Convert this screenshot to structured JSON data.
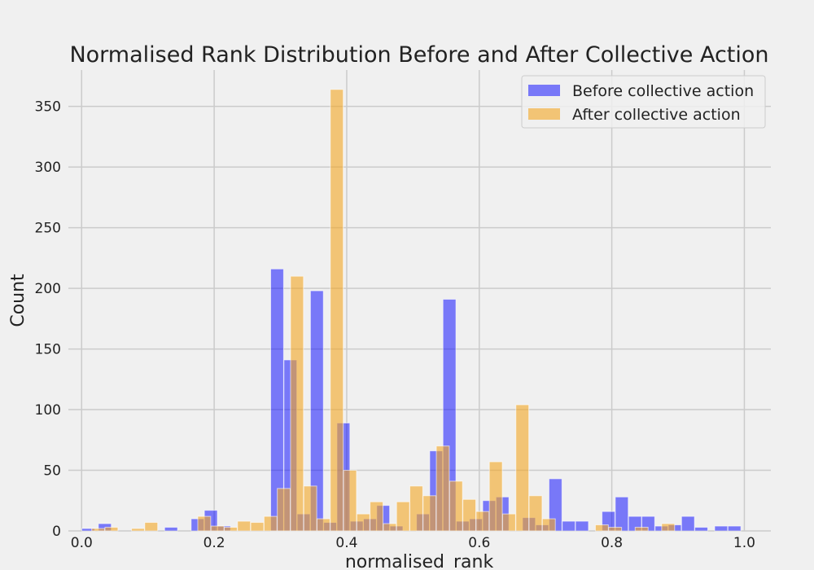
{
  "chart_data": {
    "type": "bar",
    "title": "Normalised Rank Distribution Before and After Collective Action",
    "xlabel": "normalised_rank",
    "ylabel": "Count",
    "xlim": [
      -0.02,
      1.04
    ],
    "ylim": [
      0,
      380
    ],
    "xticks": [
      0.0,
      0.2,
      0.4,
      0.6,
      0.8,
      1.0
    ],
    "xtick_labels": [
      "0.0",
      "0.2",
      "0.4",
      "0.6",
      "0.8",
      "1.0"
    ],
    "yticks": [
      0,
      50,
      100,
      150,
      200,
      250,
      300,
      350
    ],
    "ytick_labels": [
      "0",
      "50",
      "100",
      "150",
      "200",
      "250",
      "300",
      "350"
    ],
    "grid": true,
    "legend_position": "top-right",
    "bin_width": 0.0195,
    "series": [
      {
        "name": "Before collective action",
        "color": "#0000ff",
        "opacity": 0.5,
        "bins": [
          {
            "x": 0.01,
            "count": 2
          },
          {
            "x": 0.035,
            "count": 6
          },
          {
            "x": 0.135,
            "count": 3
          },
          {
            "x": 0.175,
            "count": 10
          },
          {
            "x": 0.195,
            "count": 17
          },
          {
            "x": 0.215,
            "count": 4
          },
          {
            "x": 0.295,
            "count": 216
          },
          {
            "x": 0.315,
            "count": 141
          },
          {
            "x": 0.335,
            "count": 14
          },
          {
            "x": 0.355,
            "count": 198
          },
          {
            "x": 0.375,
            "count": 7
          },
          {
            "x": 0.395,
            "count": 89
          },
          {
            "x": 0.415,
            "count": 8
          },
          {
            "x": 0.435,
            "count": 10
          },
          {
            "x": 0.455,
            "count": 21
          },
          {
            "x": 0.475,
            "count": 4
          },
          {
            "x": 0.515,
            "count": 14
          },
          {
            "x": 0.535,
            "count": 66
          },
          {
            "x": 0.555,
            "count": 191
          },
          {
            "x": 0.575,
            "count": 8
          },
          {
            "x": 0.595,
            "count": 10
          },
          {
            "x": 0.615,
            "count": 25
          },
          {
            "x": 0.635,
            "count": 28
          },
          {
            "x": 0.675,
            "count": 11
          },
          {
            "x": 0.695,
            "count": 5
          },
          {
            "x": 0.715,
            "count": 43
          },
          {
            "x": 0.735,
            "count": 8
          },
          {
            "x": 0.755,
            "count": 8
          },
          {
            "x": 0.795,
            "count": 16
          },
          {
            "x": 0.815,
            "count": 28
          },
          {
            "x": 0.835,
            "count": 12
          },
          {
            "x": 0.855,
            "count": 12
          },
          {
            "x": 0.875,
            "count": 4
          },
          {
            "x": 0.895,
            "count": 5
          },
          {
            "x": 0.915,
            "count": 12
          },
          {
            "x": 0.935,
            "count": 3
          },
          {
            "x": 0.965,
            "count": 4
          },
          {
            "x": 0.985,
            "count": 4
          }
        ]
      },
      {
        "name": "After collective action",
        "color": "#f4a623",
        "opacity": 0.6,
        "bins": [
          {
            "x": 0.025,
            "count": 2
          },
          {
            "x": 0.045,
            "count": 3
          },
          {
            "x": 0.085,
            "count": 2
          },
          {
            "x": 0.105,
            "count": 7
          },
          {
            "x": 0.185,
            "count": 12
          },
          {
            "x": 0.205,
            "count": 4
          },
          {
            "x": 0.225,
            "count": 3
          },
          {
            "x": 0.245,
            "count": 8
          },
          {
            "x": 0.265,
            "count": 7
          },
          {
            "x": 0.285,
            "count": 12
          },
          {
            "x": 0.305,
            "count": 35
          },
          {
            "x": 0.325,
            "count": 210
          },
          {
            "x": 0.345,
            "count": 37
          },
          {
            "x": 0.365,
            "count": 10
          },
          {
            "x": 0.385,
            "count": 364
          },
          {
            "x": 0.405,
            "count": 50
          },
          {
            "x": 0.425,
            "count": 14
          },
          {
            "x": 0.445,
            "count": 24
          },
          {
            "x": 0.465,
            "count": 6
          },
          {
            "x": 0.485,
            "count": 24
          },
          {
            "x": 0.505,
            "count": 37
          },
          {
            "x": 0.525,
            "count": 29
          },
          {
            "x": 0.545,
            "count": 70
          },
          {
            "x": 0.565,
            "count": 41
          },
          {
            "x": 0.585,
            "count": 26
          },
          {
            "x": 0.605,
            "count": 16
          },
          {
            "x": 0.625,
            "count": 57
          },
          {
            "x": 0.645,
            "count": 14
          },
          {
            "x": 0.665,
            "count": 104
          },
          {
            "x": 0.685,
            "count": 29
          },
          {
            "x": 0.705,
            "count": 10
          },
          {
            "x": 0.785,
            "count": 5
          },
          {
            "x": 0.805,
            "count": 3
          },
          {
            "x": 0.845,
            "count": 3
          },
          {
            "x": 0.885,
            "count": 6
          }
        ]
      }
    ]
  }
}
